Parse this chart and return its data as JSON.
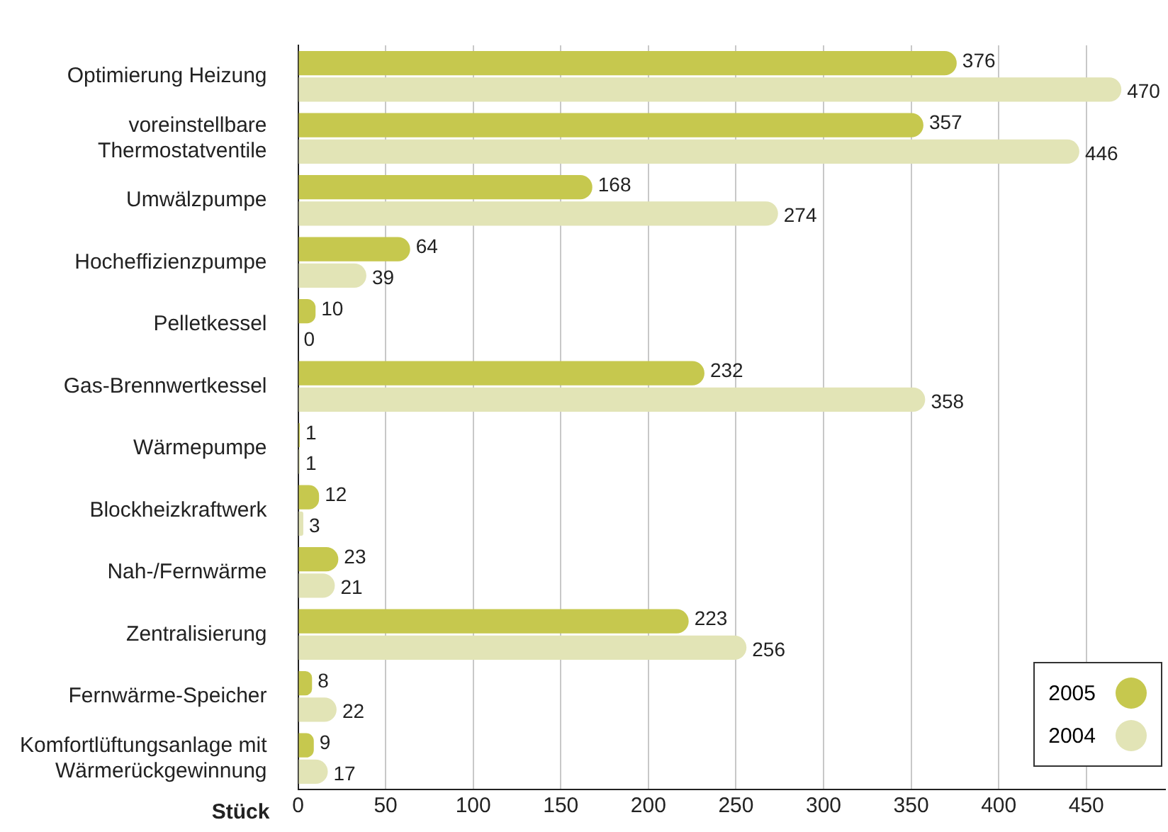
{
  "chart_data": {
    "type": "bar",
    "orientation": "horizontal",
    "xlabel": "Stück",
    "categories": [
      "Optimierung Heizung",
      "voreinstellbare\nThermostatventile",
      "Umwälzpumpe",
      "Hocheffizienzpumpe",
      "Pelletkessel",
      "Gas-Brennwertkessel",
      "Wärmepumpe",
      "Blockheizkraftwerk",
      "Nah-/Fernwärme",
      "Zentralisierung",
      "Fernwärme-Speicher",
      "Komfortlüftungsanlage mit\nWärmerückgewinnung"
    ],
    "series": [
      {
        "name": "2005",
        "color": "#c6c84e",
        "values": [
          376,
          357,
          168,
          64,
          10,
          232,
          1,
          12,
          23,
          223,
          8,
          9
        ]
      },
      {
        "name": "2004",
        "color": "#e2e4b6",
        "values": [
          470,
          446,
          274,
          39,
          0,
          358,
          1,
          3,
          21,
          256,
          22,
          17
        ]
      }
    ],
    "xlim": [
      0,
      495
    ],
    "xticks": [
      0,
      50,
      100,
      150,
      200,
      250,
      300,
      350,
      400,
      450
    ],
    "grid": "x",
    "legend": "bottom right",
    "data_labels": true
  }
}
